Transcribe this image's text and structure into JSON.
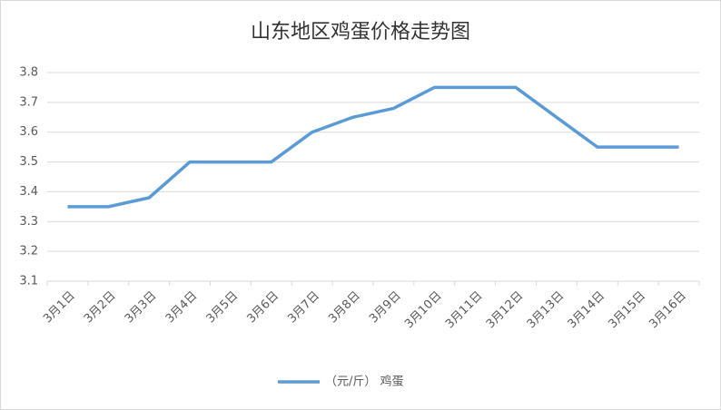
{
  "chart_data": {
    "type": "line",
    "title": "山东地区鸡蛋价格走势图",
    "categories": [
      "3月1日",
      "3月2日",
      "3月3日",
      "3月4日",
      "3月5日",
      "3月6日",
      "3月7日",
      "3月8日",
      "3月9日",
      "3月10日",
      "3月11日",
      "3月12日",
      "3月13日",
      "3月14日",
      "3月15日",
      "3月16日"
    ],
    "series": [
      {
        "name": "（元/斤） 鸡蛋",
        "color": "#5b9bd5",
        "values": [
          3.35,
          3.35,
          3.38,
          3.5,
          3.5,
          3.5,
          3.6,
          3.65,
          3.68,
          3.75,
          3.75,
          3.75,
          3.65,
          3.55,
          3.55,
          3.55
        ]
      }
    ],
    "ylim": [
      3.1,
      3.8
    ],
    "yticks": [
      3.1,
      3.2,
      3.3,
      3.4,
      3.5,
      3.6,
      3.7,
      3.8
    ],
    "grid": true,
    "legend": "bottom"
  }
}
